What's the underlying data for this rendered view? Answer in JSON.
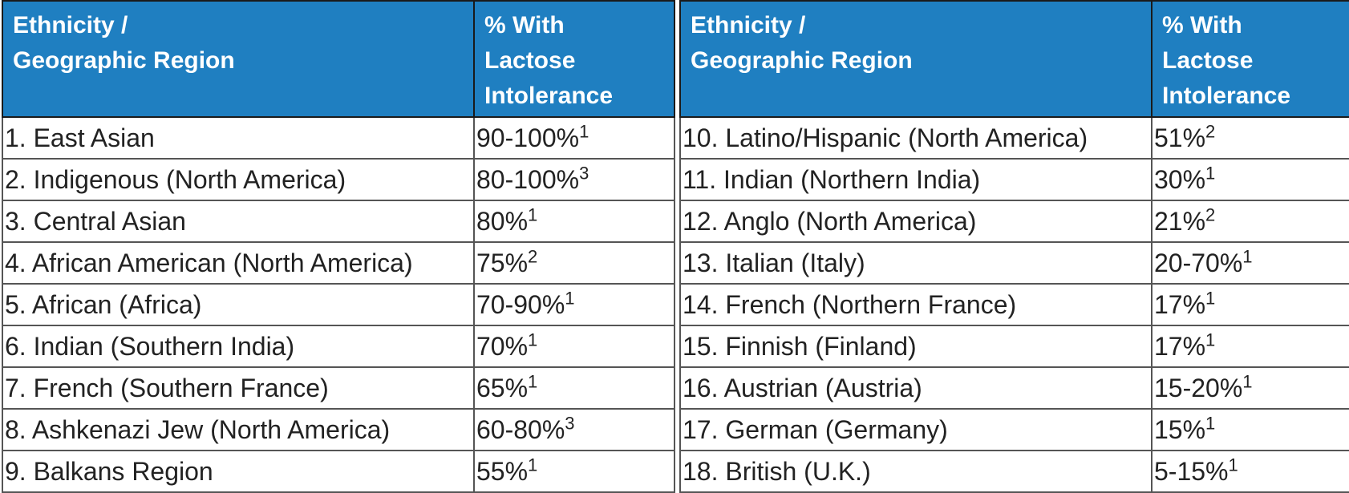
{
  "left_table": {
    "header": {
      "region": "Ethnicity /",
      "region_line2": "Geographic Region",
      "pct": "% With",
      "pct_line2": "Lactose",
      "pct_line3": "Intolerance"
    },
    "rows": [
      {
        "region": "1. East Asian",
        "pct": "90-100%",
        "ref": "1"
      },
      {
        "region": "2. Indigenous (North America)",
        "pct": "80-100%",
        "ref": "3"
      },
      {
        "region": "3. Central Asian",
        "pct": "80%",
        "ref": "1"
      },
      {
        "region": "4. African American (North America)",
        "pct": "75%",
        "ref": "2"
      },
      {
        "region": "5. African (Africa)",
        "pct": "70-90%",
        "ref": "1"
      },
      {
        "region": "6. Indian (Southern India)",
        "pct": "70%",
        "ref": "1"
      },
      {
        "region": "7. French (Southern France)",
        "pct": "65%",
        "ref": "1"
      },
      {
        "region": "8. Ashkenazi Jew (North America)",
        "pct": "60-80%",
        "ref": "3"
      },
      {
        "region": "9. Balkans Region",
        "pct": "55%",
        "ref": "1"
      }
    ]
  },
  "right_table": {
    "header": {
      "region": "Ethnicity /",
      "region_line2": "Geographic Region",
      "pct": "% With",
      "pct_line2": "Lactose",
      "pct_line3": "Intolerance"
    },
    "rows": [
      {
        "region": "10. Latino/Hispanic (North America)",
        "pct": "51%",
        "ref": "2"
      },
      {
        "region": "11. Indian (Northern India)",
        "pct": "30%",
        "ref": "1"
      },
      {
        "region": "12. Anglo (North America)",
        "pct": "21%",
        "ref": "2"
      },
      {
        "region": "13. Italian (Italy)",
        "pct": "20-70%",
        "ref": "1"
      },
      {
        "region": "14. French (Northern France)",
        "pct": "17%",
        "ref": "1"
      },
      {
        "region": "15. Finnish (Finland)",
        "pct": "17%",
        "ref": "1"
      },
      {
        "region": "16. Austrian (Austria)",
        "pct": "15-20%",
        "ref": "1"
      },
      {
        "region": "17. German (Germany)",
        "pct": "15%",
        "ref": "1"
      },
      {
        "region": "18. British (U.K.)",
        "pct": "5-15%",
        "ref": "1"
      }
    ]
  }
}
